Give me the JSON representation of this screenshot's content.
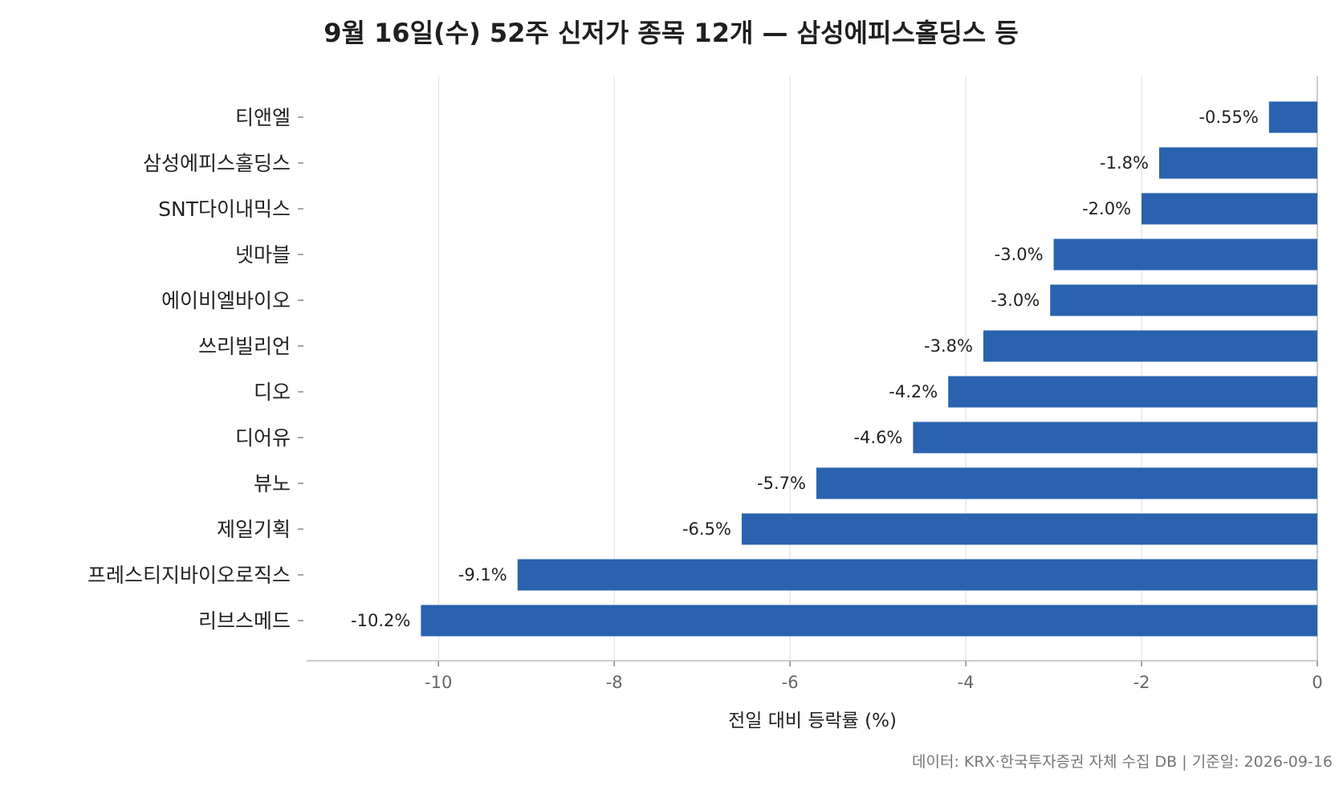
{
  "chart_data": {
    "type": "bar",
    "orientation": "horizontal",
    "title": "9월 16일(수) 52주 신저가 종목 12개 — 삼성에피스홀딩스 등",
    "xlabel": "전일 대비 등락률 (%)",
    "ylabel": "",
    "source_note": "데이터: KRX·한국투자증권 자체 수집 DB  |  기준일: 2026-09-16",
    "categories": [
      "티앤엘",
      "삼성에피스홀딩스",
      "SNT다이내믹스",
      "넷마블",
      "에이비엘바이오",
      "쓰리빌리언",
      "디오",
      "디어유",
      "뷰노",
      "제일기획",
      "프레스티지바이오로직스",
      "리브스메드"
    ],
    "values": [
      -0.55,
      -1.8,
      -2.0,
      -3.0,
      -3.04,
      -3.8,
      -4.2,
      -4.6,
      -5.7,
      -6.55,
      -9.1,
      -10.2
    ],
    "data_labels": [
      "-0.55%",
      "-1.8%",
      "-2.0%",
      "-3.0%",
      "-3.0%",
      "-3.8%",
      "-4.2%",
      "-4.6%",
      "-5.7%",
      "-6.5%",
      "-9.1%",
      "-10.2%"
    ],
    "xlim": [
      -11.5,
      0
    ],
    "xticks": [
      -10,
      -8,
      -6,
      -4,
      -2,
      0
    ],
    "xtick_labels": [
      "-10",
      "-8",
      "-6",
      "-4",
      "-2",
      "0"
    ],
    "grid": "vertical",
    "bar_color": "#2a62b0",
    "legend": "none"
  }
}
